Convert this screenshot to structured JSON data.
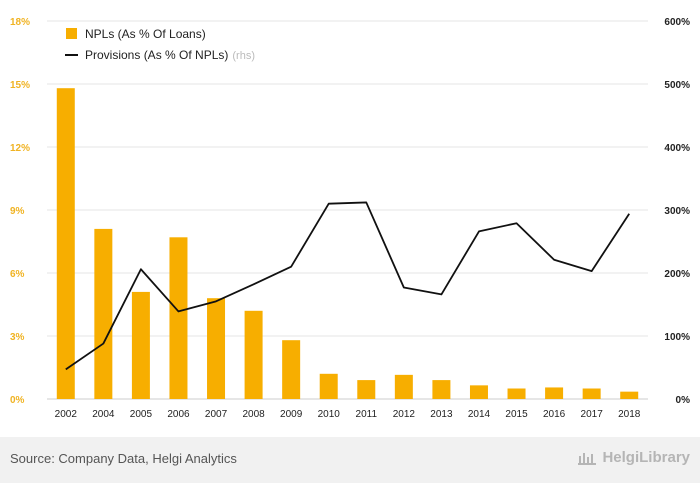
{
  "chart_data": {
    "type": "bar",
    "categories": [
      "2002",
      "2004",
      "2005",
      "2006",
      "2007",
      "2008",
      "2009",
      "2010",
      "2011",
      "2012",
      "2013",
      "2014",
      "2015",
      "2016",
      "2017",
      "2018"
    ],
    "series": [
      {
        "name": "NPLs (As % Of Loans)",
        "type": "bar",
        "axis": "left",
        "values": [
          14.8,
          8.1,
          5.1,
          7.7,
          4.8,
          4.2,
          2.8,
          1.2,
          0.9,
          1.15,
          0.9,
          0.65,
          0.5,
          0.55,
          0.5,
          0.35
        ]
      },
      {
        "name": "Provisions (As % Of NPLs)",
        "name_suffix": "(rhs)",
        "type": "line",
        "axis": "right",
        "values": [
          47,
          88,
          206,
          139,
          155,
          182,
          210,
          310,
          312,
          177,
          166,
          266,
          279,
          221,
          203,
          294
        ]
      }
    ],
    "y_left": {
      "ylim": [
        0,
        18
      ],
      "ticks": [
        "0%",
        "3%",
        "6%",
        "9%",
        "12%",
        "15%",
        "18%"
      ],
      "tick_values": [
        0,
        3,
        6,
        9,
        12,
        15,
        18
      ]
    },
    "y_right": {
      "ylim": [
        0,
        600
      ],
      "ticks": [
        "0%",
        "100%",
        "200%",
        "300%",
        "400%",
        "500%",
        "600%"
      ],
      "tick_values": [
        0,
        100,
        200,
        300,
        400,
        500,
        600
      ]
    },
    "grid": true,
    "legend_position": "top-left",
    "colors": {
      "bar": "#f7ae00",
      "line": "#111111",
      "left_axis": "#f0b323",
      "grid": "#e6e6e6"
    }
  },
  "footer": {
    "source": "Source: Company Data, Helgi Analytics",
    "brand": "HelgiLibrary"
  }
}
